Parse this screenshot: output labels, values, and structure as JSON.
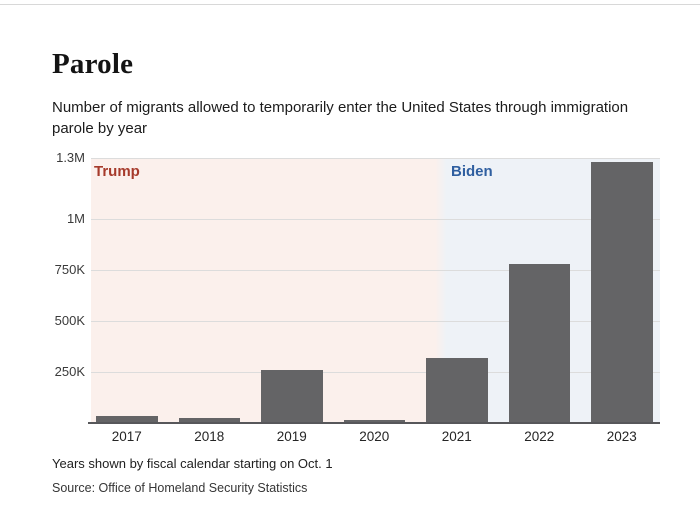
{
  "page": {
    "title": "Parole",
    "subtitle_lines": [
      "Number of migrants allowed to temporarily enter the United States through immigration",
      "parole by year"
    ],
    "footnote": "Years shown by fiscal calendar starting on Oct. 1",
    "source": "Source: Office of Homeland Security Statistics"
  },
  "colors": {
    "page_background": "#ffffff",
    "top_rule": "#d8d8d8",
    "axis_line": "#57575a",
    "grid_line": "#dcdcdc"
  },
  "chart_data": {
    "type": "bar",
    "title": "Parole",
    "subtitle": "Number of migrants allowed to temporarily enter the United States through immigration parole by year",
    "xlabel": "",
    "ylabel": "",
    "categories": [
      "2017",
      "2018",
      "2019",
      "2020",
      "2021",
      "2022",
      "2023"
    ],
    "values": [
      35000,
      23000,
      260000,
      17000,
      320000,
      780000,
      1280000
    ],
    "ylim": [
      0,
      1300000
    ],
    "yticks": [
      {
        "label": "1.3M",
        "value": 1300000
      },
      {
        "label": "1M",
        "value": 1000000
      },
      {
        "label": "750K",
        "value": 750000
      },
      {
        "label": "500K",
        "value": 500000
      },
      {
        "label": "250K",
        "value": 250000
      }
    ],
    "grid": true,
    "legend": "none",
    "bar_color": "#646466",
    "annotations": [
      {
        "label": "Trump",
        "text_color": "#a63a2b",
        "region_color": "#fbf0ec",
        "position": "left"
      },
      {
        "label": "Biden",
        "text_color": "#2f5fa0",
        "region_color": "#eef2f7",
        "position": "right"
      }
    ],
    "region_split_fraction": 0.615
  }
}
